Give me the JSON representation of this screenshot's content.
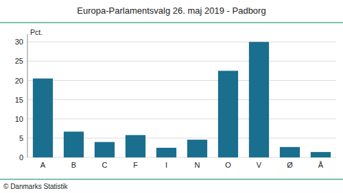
{
  "chart_data": {
    "type": "bar",
    "title": "Europa-Parlamentsvalg 26. maj 2019 - Padborg",
    "categories": [
      "A",
      "B",
      "C",
      "F",
      "I",
      "N",
      "O",
      "V",
      "Ø",
      "Å"
    ],
    "values": [
      20.5,
      6.7,
      4.0,
      5.8,
      2.5,
      4.6,
      22.5,
      30.0,
      2.7,
      1.4
    ],
    "color": "#1a6e8e",
    "ylabel": "Pct.",
    "ylim": [
      0,
      32
    ],
    "yticks": [
      0,
      5,
      10,
      15,
      20,
      25,
      30
    ],
    "grid": true,
    "footer": "© Danmarks Statistik"
  }
}
